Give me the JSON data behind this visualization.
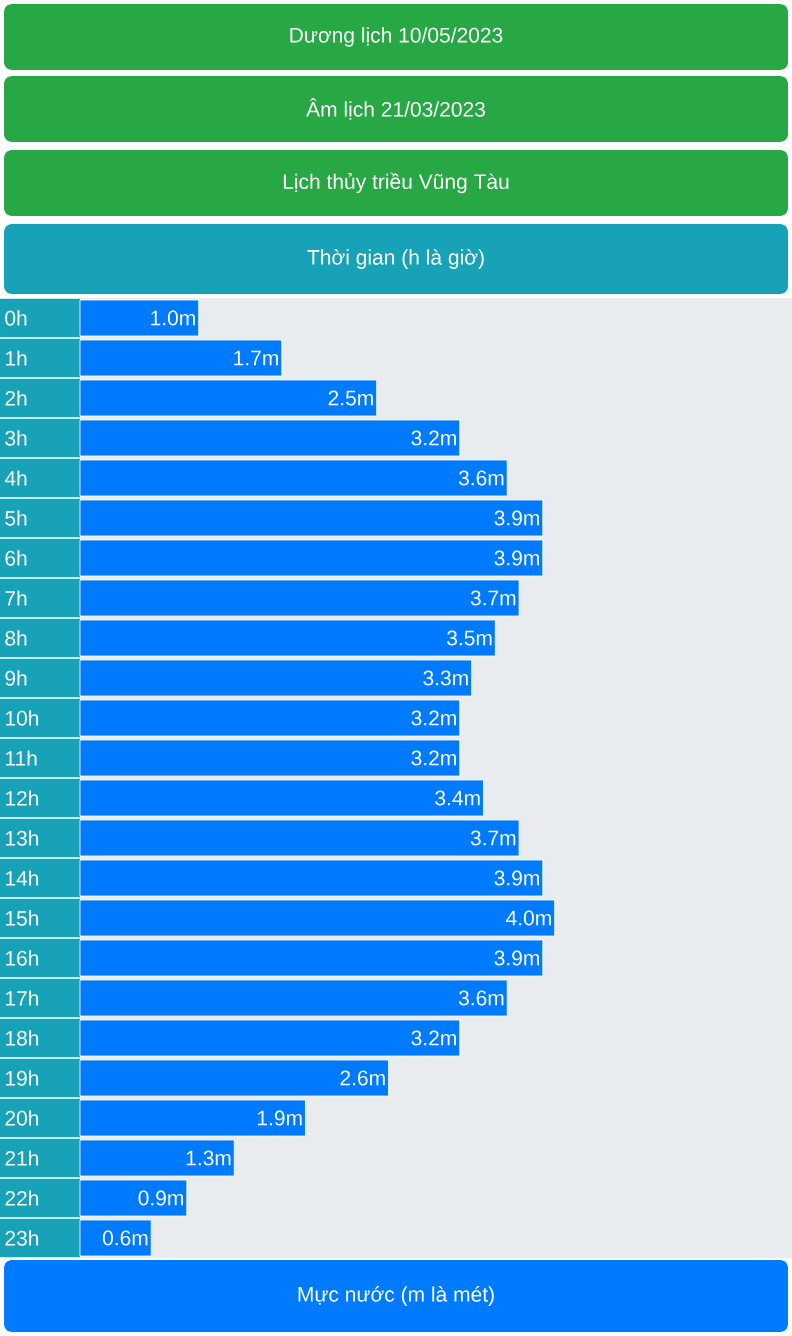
{
  "chart_data": {
    "type": "bar",
    "orientation": "horizontal",
    "title": "Dương lịch 10/05/2023",
    "subtitle": "Âm lịch 21/03/2023",
    "annotations": [
      "Lịch thủy triều Vũng Tàu",
      "Thời gian (h là giờ)",
      "Mực nước (m là mét)"
    ],
    "categories": [
      "0h",
      "1h",
      "2h",
      "3h",
      "4h",
      "5h",
      "6h",
      "7h",
      "8h",
      "9h",
      "10h",
      "11h",
      "12h",
      "13h",
      "14h",
      "15h",
      "16h",
      "17h",
      "18h",
      "19h",
      "20h",
      "21h",
      "22h",
      "23h"
    ],
    "values": [
      1.0,
      1.7,
      2.5,
      3.2,
      3.6,
      3.9,
      3.9,
      3.7,
      3.5,
      3.3,
      3.2,
      3.2,
      3.4,
      3.7,
      3.9,
      4.0,
      3.9,
      3.6,
      3.2,
      2.6,
      1.9,
      1.3,
      0.9,
      0.6
    ],
    "value_labels": [
      "1.0m",
      "1.7m",
      "2.5m",
      "3.2m",
      "3.6m",
      "3.9m",
      "3.9m",
      "3.7m",
      "3.5m",
      "3.3m",
      "3.2m",
      "3.2m",
      "3.4m",
      "3.7m",
      "3.9m",
      "4.0m",
      "3.9m",
      "3.6m",
      "3.2m",
      "2.6m",
      "1.9m",
      "1.3m",
      "0.9m",
      "0.6m"
    ],
    "color": "#007bff",
    "tick_labels": "y"
  }
}
